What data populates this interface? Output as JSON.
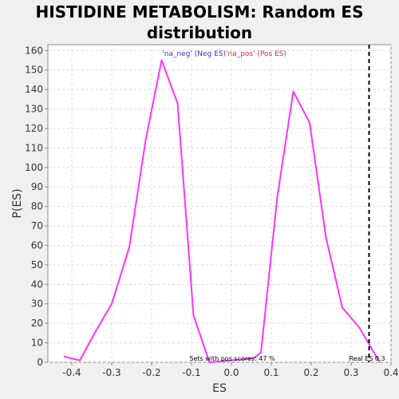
{
  "chart_data": {
    "type": "line",
    "title_lines": [
      "HISTIDINE METABOLISM: Random ES",
      "distribution"
    ],
    "xlabel": "ES",
    "ylabel": "P(ES)",
    "xlim": [
      -0.46,
      0.4
    ],
    "ylim": [
      0,
      163
    ],
    "xticks": [
      {
        "v": -0.4,
        "label": "-0.4"
      },
      {
        "v": -0.3,
        "label": "-0.3"
      },
      {
        "v": -0.2,
        "label": "-0.2"
      },
      {
        "v": -0.1,
        "label": "-0.1"
      },
      {
        "v": 0.0,
        "label": "0.0"
      },
      {
        "v": 0.1,
        "label": "0.1"
      },
      {
        "v": 0.2,
        "label": "0.2"
      },
      {
        "v": 0.3,
        "label": "0.3"
      },
      {
        "v": 0.4,
        "label": "0.4"
      }
    ],
    "yticks": [
      0,
      10,
      20,
      30,
      40,
      50,
      60,
      70,
      80,
      90,
      100,
      110,
      120,
      130,
      140,
      150,
      160
    ],
    "grid": true,
    "colors": {
      "line": "#ff33ff",
      "neg_label": "#3333cc",
      "pos_label": "#cc3333",
      "real_es": "#000000"
    },
    "series": [
      {
        "values": [
          {
            "x": -0.42,
            "y": 3
          },
          {
            "x": -0.38,
            "y": 1
          },
          {
            "x": -0.34,
            "y": 16
          },
          {
            "x": -0.3,
            "y": 30
          },
          {
            "x": -0.256,
            "y": 59
          },
          {
            "x": -0.215,
            "y": 114
          },
          {
            "x": -0.175,
            "y": 155
          },
          {
            "x": -0.135,
            "y": 133
          },
          {
            "x": -0.095,
            "y": 24
          },
          {
            "x": -0.055,
            "y": 0
          },
          {
            "x": 0.055,
            "y": 2
          },
          {
            "x": 0.074,
            "y": 5
          },
          {
            "x": 0.115,
            "y": 85
          },
          {
            "x": 0.155,
            "y": 139
          },
          {
            "x": 0.196,
            "y": 123
          },
          {
            "x": 0.237,
            "y": 64
          },
          {
            "x": 0.278,
            "y": 28
          },
          {
            "x": 0.32,
            "y": 18
          },
          {
            "x": 0.36,
            "y": 4
          },
          {
            "x": 0.372,
            "y": 0
          }
        ]
      }
    ],
    "legend": {
      "neg": "'na_neg' (Neg ES)",
      "pos": "'na_pos' (Pos ES)"
    },
    "real_es_x": 0.345,
    "annotations": {
      "pos_scores": "Sets with pos scores: 47 %",
      "real_es": "Real ES 0.3"
    }
  }
}
